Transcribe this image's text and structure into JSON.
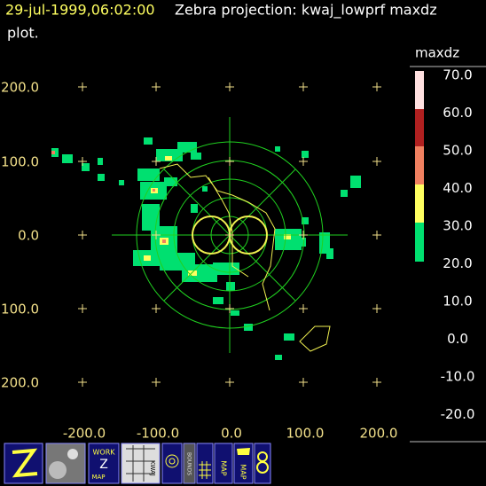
{
  "header": {
    "time": "29-jul-1999,06:02:00",
    "title": "Zebra projection: kwaj_lowprf maxdz",
    "line2": "plot."
  },
  "colorbar": {
    "label": "maxdz",
    "ticks": [
      "70.0",
      "60.0",
      "50.0",
      "40.0",
      "30.0",
      "20.0",
      "10.0",
      "0.0",
      "-10.0",
      "-20.0"
    ]
  },
  "axes": {
    "x_labels": [
      "-200.0",
      "-100.0",
      "0.0",
      "100.0",
      "200.0"
    ],
    "y_labels": [
      "200.0",
      "100.0",
      "0.0",
      "100.0",
      "200.0"
    ]
  },
  "toolbar": {
    "work": "WORK",
    "map": "MAP",
    "bounds": "BOUNDS",
    "kwaj": "KWAJ",
    "map2": "MAP",
    "map3": "MAP"
  }
}
